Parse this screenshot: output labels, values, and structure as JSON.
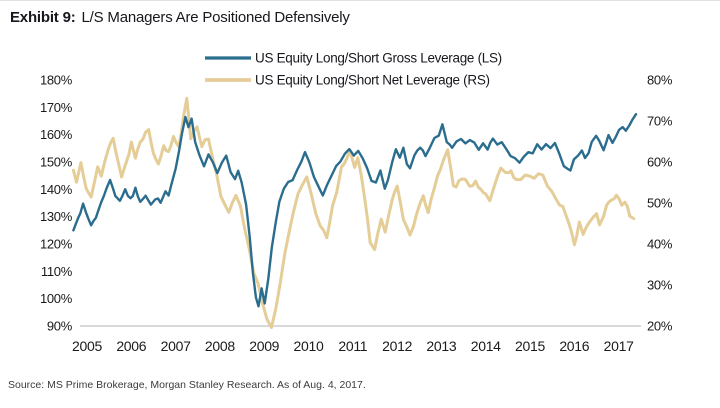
{
  "title": {
    "label": "Exhibit 9:",
    "text": "L/S Managers Are Positioned Defensively"
  },
  "source": "Source: MS Prime Brokerage, Morgan Stanley Research. As of Aug. 4, 2017.",
  "colors": {
    "gross_line": "#2a6d8e",
    "net_line": "#e4cd97",
    "axis_line": "#b3b3b3",
    "text": "#1a1a1a"
  },
  "legend": [
    {
      "label": "US Equity Long/Short Gross Leverage (LS)",
      "color": "#2a6d8e"
    },
    {
      "label": "US Equity Long/Short Net Leverage (RS)",
      "color": "#e4cd97"
    }
  ],
  "chart_data": {
    "type": "line",
    "title": "Exhibit 9: L/S Managers Are Positioned Defensively",
    "grid": false,
    "legend_position": "top-center",
    "x_axis": {
      "tick_labels": [
        "2005",
        "2006",
        "2007",
        "2008",
        "2009",
        "2010",
        "2011",
        "2012",
        "2013",
        "2014",
        "2015",
        "2016",
        "2017"
      ],
      "range": [
        2004.85,
        2017.6
      ]
    },
    "left_axis": {
      "tick_labels": [
        "180%",
        "170%",
        "160%",
        "150%",
        "140%",
        "130%",
        "120%",
        "110%",
        "100%",
        "90%"
      ],
      "tick_values": [
        180,
        170,
        160,
        150,
        140,
        130,
        120,
        110,
        100,
        90
      ],
      "range": [
        90,
        180
      ],
      "unit": "%"
    },
    "right_axis": {
      "tick_labels": [
        "80%",
        "70%",
        "60%",
        "50%",
        "40%",
        "30%",
        "20%"
      ],
      "tick_values": [
        80,
        70,
        60,
        50,
        40,
        30,
        20
      ],
      "range": [
        20,
        80
      ],
      "unit": "%"
    },
    "series": [
      {
        "name": "US Equity Long/Short Gross Leverage (LS)",
        "axis": "left",
        "color": "#2a6d8e",
        "points": [
          [
            2004.85,
            125
          ],
          [
            2004.95,
            130
          ],
          [
            2005.07,
            134
          ],
          [
            2005.14,
            131
          ],
          [
            2005.25,
            127
          ],
          [
            2005.36,
            130
          ],
          [
            2005.48,
            135
          ],
          [
            2005.6,
            141
          ],
          [
            2005.68,
            143
          ],
          [
            2005.8,
            138
          ],
          [
            2005.9,
            136
          ],
          [
            2006.02,
            140
          ],
          [
            2006.14,
            136
          ],
          [
            2006.25,
            140
          ],
          [
            2006.36,
            136
          ],
          [
            2006.48,
            138
          ],
          [
            2006.6,
            134
          ],
          [
            2006.7,
            137
          ],
          [
            2006.82,
            135
          ],
          [
            2006.93,
            139
          ],
          [
            2007.0,
            137
          ],
          [
            2007.07,
            142
          ],
          [
            2007.16,
            147
          ],
          [
            2007.23,
            153
          ],
          [
            2007.3,
            161
          ],
          [
            2007.38,
            167
          ],
          [
            2007.45,
            163
          ],
          [
            2007.52,
            166
          ],
          [
            2007.6,
            158
          ],
          [
            2007.7,
            153
          ],
          [
            2007.8,
            148
          ],
          [
            2007.9,
            153
          ],
          [
            2008.0,
            150
          ],
          [
            2008.1,
            146
          ],
          [
            2008.2,
            149
          ],
          [
            2008.3,
            152
          ],
          [
            2008.4,
            146
          ],
          [
            2008.5,
            144
          ],
          [
            2008.57,
            147
          ],
          [
            2008.65,
            143
          ],
          [
            2008.75,
            135
          ],
          [
            2008.83,
            122
          ],
          [
            2008.9,
            110
          ],
          [
            2008.97,
            101
          ],
          [
            2009.03,
            97
          ],
          [
            2009.1,
            104
          ],
          [
            2009.17,
            99
          ],
          [
            2009.25,
            107
          ],
          [
            2009.33,
            118
          ],
          [
            2009.42,
            128
          ],
          [
            2009.5,
            135
          ],
          [
            2009.6,
            140
          ],
          [
            2009.7,
            142
          ],
          [
            2009.8,
            144
          ],
          [
            2009.9,
            147
          ],
          [
            2010.0,
            150
          ],
          [
            2010.08,
            153
          ],
          [
            2010.18,
            149
          ],
          [
            2010.28,
            144
          ],
          [
            2010.38,
            141
          ],
          [
            2010.48,
            137
          ],
          [
            2010.58,
            141
          ],
          [
            2010.68,
            145
          ],
          [
            2010.78,
            148
          ],
          [
            2010.88,
            151
          ],
          [
            2010.98,
            153
          ],
          [
            2011.08,
            155
          ],
          [
            2011.18,
            152
          ],
          [
            2011.28,
            154
          ],
          [
            2011.38,
            151
          ],
          [
            2011.48,
            147
          ],
          [
            2011.58,
            143
          ],
          [
            2011.68,
            142
          ],
          [
            2011.78,
            147
          ],
          [
            2011.88,
            140
          ],
          [
            2011.95,
            143
          ],
          [
            2012.05,
            150
          ],
          [
            2012.13,
            155
          ],
          [
            2012.22,
            152
          ],
          [
            2012.3,
            156
          ],
          [
            2012.38,
            150
          ],
          [
            2012.45,
            147
          ],
          [
            2012.55,
            152
          ],
          [
            2012.68,
            156
          ],
          [
            2012.8,
            152
          ],
          [
            2012.9,
            155
          ],
          [
            2013.0,
            158
          ],
          [
            2013.1,
            160
          ],
          [
            2013.18,
            163
          ],
          [
            2013.28,
            157
          ],
          [
            2013.4,
            155
          ],
          [
            2013.5,
            157
          ],
          [
            2013.6,
            159
          ],
          [
            2013.7,
            156
          ],
          [
            2013.8,
            158
          ],
          [
            2013.9,
            157
          ],
          [
            2014.0,
            155
          ],
          [
            2014.1,
            157
          ],
          [
            2014.2,
            155
          ],
          [
            2014.32,
            158
          ],
          [
            2014.42,
            156
          ],
          [
            2014.52,
            157
          ],
          [
            2014.62,
            154
          ],
          [
            2014.72,
            152
          ],
          [
            2014.82,
            151
          ],
          [
            2014.92,
            149
          ],
          [
            2015.02,
            152
          ],
          [
            2015.12,
            154
          ],
          [
            2015.22,
            153
          ],
          [
            2015.32,
            156
          ],
          [
            2015.42,
            154
          ],
          [
            2015.52,
            157
          ],
          [
            2015.62,
            155
          ],
          [
            2015.72,
            157
          ],
          [
            2015.82,
            153
          ],
          [
            2015.92,
            149
          ],
          [
            2016.0,
            148
          ],
          [
            2016.07,
            147
          ],
          [
            2016.15,
            151
          ],
          [
            2016.25,
            153
          ],
          [
            2016.33,
            155
          ],
          [
            2016.4,
            152
          ],
          [
            2016.48,
            154
          ],
          [
            2016.55,
            158
          ],
          [
            2016.65,
            159
          ],
          [
            2016.72,
            157
          ],
          [
            2016.82,
            155
          ],
          [
            2016.93,
            160
          ],
          [
            2017.02,
            157
          ],
          [
            2017.1,
            159
          ],
          [
            2017.17,
            162
          ],
          [
            2017.25,
            163
          ],
          [
            2017.32,
            161
          ],
          [
            2017.4,
            163
          ],
          [
            2017.47,
            165
          ],
          [
            2017.55,
            167.5
          ]
        ]
      },
      {
        "name": "US Equity Long/Short Net Leverage (RS)",
        "axis": "right",
        "color": "#e4cd97",
        "points": [
          [
            2004.85,
            58
          ],
          [
            2004.92,
            55
          ],
          [
            2005.02,
            60
          ],
          [
            2005.14,
            54
          ],
          [
            2005.25,
            52
          ],
          [
            2005.4,
            59
          ],
          [
            2005.48,
            56.5
          ],
          [
            2005.64,
            63
          ],
          [
            2005.75,
            66
          ],
          [
            2005.86,
            60
          ],
          [
            2005.94,
            56.5
          ],
          [
            2006.05,
            60
          ],
          [
            2006.16,
            64.7
          ],
          [
            2006.25,
            61
          ],
          [
            2006.36,
            65
          ],
          [
            2006.48,
            67
          ],
          [
            2006.55,
            68
          ],
          [
            2006.66,
            62.3
          ],
          [
            2006.77,
            60
          ],
          [
            2006.89,
            63.5
          ],
          [
            2007.0,
            62.3
          ],
          [
            2007.11,
            66.4
          ],
          [
            2007.23,
            63.5
          ],
          [
            2007.34,
            71.3
          ],
          [
            2007.41,
            76
          ],
          [
            2007.5,
            66
          ],
          [
            2007.64,
            69
          ],
          [
            2007.75,
            64
          ],
          [
            2007.9,
            66
          ],
          [
            2008.0,
            61
          ],
          [
            2008.08,
            57
          ],
          [
            2008.18,
            52
          ],
          [
            2008.36,
            48
          ],
          [
            2008.52,
            51.3
          ],
          [
            2008.62,
            49
          ],
          [
            2008.72,
            44
          ],
          [
            2008.82,
            39
          ],
          [
            2008.92,
            33.5
          ],
          [
            2009.02,
            30
          ],
          [
            2009.12,
            26
          ],
          [
            2009.22,
            22
          ],
          [
            2009.32,
            20
          ],
          [
            2009.42,
            24
          ],
          [
            2009.52,
            30
          ],
          [
            2009.62,
            37
          ],
          [
            2009.72,
            43
          ],
          [
            2009.82,
            48
          ],
          [
            2009.92,
            52
          ],
          [
            2010.02,
            54
          ],
          [
            2010.12,
            56.2
          ],
          [
            2010.22,
            52
          ],
          [
            2010.32,
            47.3
          ],
          [
            2010.42,
            44
          ],
          [
            2010.5,
            43.3
          ],
          [
            2010.57,
            41.2
          ],
          [
            2010.7,
            48.9
          ],
          [
            2010.8,
            53
          ],
          [
            2010.9,
            58.6
          ],
          [
            2011.02,
            61
          ],
          [
            2011.09,
            62.7
          ],
          [
            2011.2,
            59.1
          ],
          [
            2011.27,
            61.5
          ],
          [
            2011.43,
            51.3
          ],
          [
            2011.55,
            40
          ],
          [
            2011.65,
            38.8
          ],
          [
            2011.8,
            45.6
          ],
          [
            2011.89,
            43.3
          ],
          [
            2012.05,
            51.3
          ],
          [
            2012.16,
            54.3
          ],
          [
            2012.3,
            46.3
          ],
          [
            2012.45,
            41.9
          ],
          [
            2012.6,
            47
          ],
          [
            2012.75,
            51.7
          ],
          [
            2012.86,
            48.1
          ],
          [
            2013.0,
            54
          ],
          [
            2013.07,
            56.2
          ],
          [
            2013.2,
            60
          ],
          [
            2013.3,
            62.7
          ],
          [
            2013.43,
            53.8
          ],
          [
            2013.55,
            55
          ],
          [
            2013.7,
            56.2
          ],
          [
            2013.8,
            54.5
          ],
          [
            2013.93,
            55
          ],
          [
            2014.05,
            53.5
          ],
          [
            2014.16,
            52.3
          ],
          [
            2014.25,
            51
          ],
          [
            2014.35,
            54
          ],
          [
            2014.5,
            58
          ],
          [
            2014.6,
            57
          ],
          [
            2014.73,
            57.5
          ],
          [
            2014.85,
            56
          ],
          [
            2014.95,
            55.5
          ],
          [
            2015.05,
            56.5
          ],
          [
            2015.15,
            57
          ],
          [
            2015.25,
            56
          ],
          [
            2015.35,
            57
          ],
          [
            2015.45,
            56.5
          ],
          [
            2015.55,
            54.5
          ],
          [
            2015.65,
            52.5
          ],
          [
            2015.75,
            50.6
          ],
          [
            2015.9,
            48.6
          ],
          [
            2016.05,
            45
          ],
          [
            2016.16,
            39.5
          ],
          [
            2016.27,
            45
          ],
          [
            2016.36,
            42.5
          ],
          [
            2016.5,
            45.6
          ],
          [
            2016.6,
            46.5
          ],
          [
            2016.66,
            46.9
          ],
          [
            2016.73,
            45
          ],
          [
            2016.82,
            46.5
          ],
          [
            2016.89,
            49.3
          ],
          [
            2017.0,
            50.6
          ],
          [
            2017.11,
            52.3
          ],
          [
            2017.23,
            49.3
          ],
          [
            2017.3,
            50.6
          ],
          [
            2017.41,
            47.3
          ],
          [
            2017.5,
            46.2
          ]
        ]
      }
    ]
  }
}
